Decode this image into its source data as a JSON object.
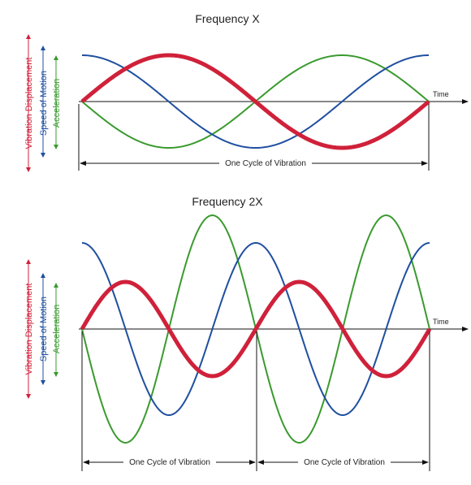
{
  "colors": {
    "displacement": "#d0213a",
    "speed": "#1f4fa0",
    "acceleration": "#3a9a2e",
    "axis": "#111111"
  },
  "legend": {
    "displacement": "Vibration Displacement",
    "speed": "Speed of Motion",
    "acceleration": "Acceleration"
  },
  "time_label": "Time",
  "cycle_label": "One Cycle of Vibration",
  "panels": [
    {
      "title": "Frequency X",
      "cycles": 1
    },
    {
      "title": "Frequency 2X",
      "cycles": 2
    }
  ]
}
